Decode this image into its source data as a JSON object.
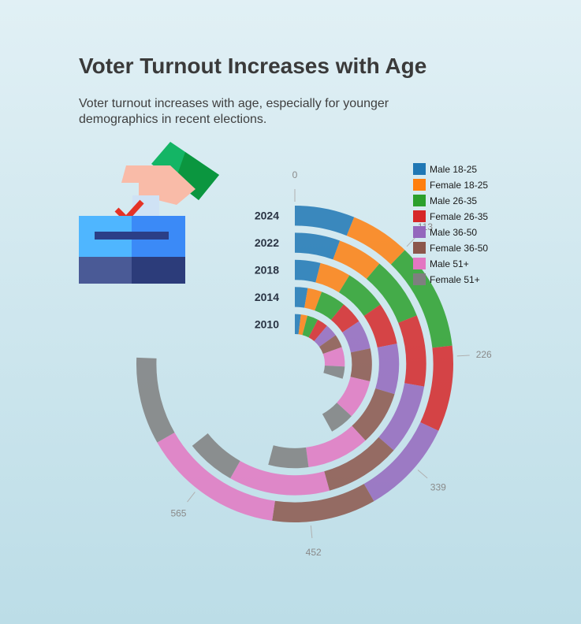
{
  "title": "Voter Turnout Increases with Age",
  "subtitle": "Voter turnout increases with age, especially for younger demographics in recent elections.",
  "icon": "ballot-box-vote-icon",
  "chart_data": {
    "type": "radial-stacked-bar",
    "categories": [
      "2010",
      "2014",
      "2018",
      "2022",
      "2024"
    ],
    "series": [
      {
        "name": "Male 18-25",
        "color": "#1f77b4",
        "values": [
          18,
          25,
          37,
          52,
          57
        ]
      },
      {
        "name": "Female 18-25",
        "color": "#ff7f0e",
        "values": [
          20,
          28,
          45,
          52,
          57
        ]
      },
      {
        "name": "Male 26-35",
        "color": "#2ca02c",
        "values": [
          33,
          49,
          61,
          73,
          102
        ]
      },
      {
        "name": "Female 26-35",
        "color": "#d62728",
        "values": [
          33,
          44,
          61,
          82,
          82
        ]
      },
      {
        "name": "Male 36-50",
        "color": "#9467bd",
        "values": [
          38,
          57,
          73,
          81,
          91
        ]
      },
      {
        "name": "Female 36-50",
        "color": "#8c564b",
        "values": [
          40,
          64,
          79,
          87,
          99
        ]
      },
      {
        "name": "Male 51+",
        "color": "#e377c2",
        "values": [
          59,
          77,
          91,
          116,
          135
        ]
      },
      {
        "name": "Female 51+",
        "color": "#7f7f7f",
        "values": [
          37,
          48,
          58,
          57,
          83
        ]
      }
    ],
    "radial_axis": {
      "range": [
        0,
        700
      ],
      "ticks": [
        "0",
        "113",
        "226",
        "339",
        "452",
        "565"
      ]
    },
    "legend_position": "top-right",
    "grid": false
  }
}
